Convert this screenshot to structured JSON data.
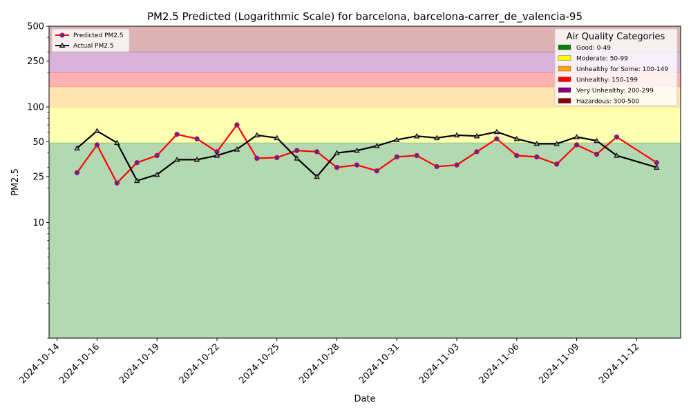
{
  "chart_data": {
    "type": "line",
    "title": "PM2.5 Predicted (Logarithmic Scale) for barcelona, barcelona-carrer_de_valencia-95",
    "xlabel": "Date",
    "ylabel": "PM2.5",
    "yscale": "log",
    "ylim": [
      1,
      500
    ],
    "xlim": [
      "2024-10-13.6",
      "2024-11-14.2"
    ],
    "yticks": [
      10,
      25,
      50,
      100,
      250,
      500
    ],
    "xticks": [
      "2024-10-14",
      "2024-10-16",
      "2024-10-19",
      "2024-10-22",
      "2024-10-25",
      "2024-10-28",
      "2024-10-31",
      "2024-11-03",
      "2024-11-06",
      "2024-11-09",
      "2024-11-12"
    ],
    "bands": [
      {
        "label": "Good: 0-49",
        "from": 0,
        "to": 49,
        "color": "#008000"
      },
      {
        "label": "Moderate: 50-99",
        "from": 49,
        "to": 99,
        "color": "#ffff00"
      },
      {
        "label": "Unhealthy for Some: 100-149",
        "from": 99,
        "to": 149,
        "color": "#ffa500"
      },
      {
        "label": "Unhealthy: 150-199",
        "from": 149,
        "to": 199,
        "color": "#ff0000"
      },
      {
        "label": "Very Unhealthy: 200-299",
        "from": 199,
        "to": 299,
        "color": "#800080"
      },
      {
        "label": "Hazardous: 300-500",
        "from": 299,
        "to": 500,
        "color": "#8b0000"
      }
    ],
    "legend_title": "Air Quality Categories",
    "legend_position": "top-right",
    "series": [
      {
        "name": "Predicted PM2.5",
        "color": "#ff0000",
        "marker_color": "#3333cc",
        "marker": "circle",
        "points": [
          [
            "2024-10-15",
            27
          ],
          [
            "2024-10-16",
            47
          ],
          [
            "2024-10-17",
            22
          ],
          [
            "2024-10-18",
            33
          ],
          [
            "2024-10-19",
            38
          ],
          [
            "2024-10-20",
            58
          ],
          [
            "2024-10-21",
            53
          ],
          [
            "2024-10-22",
            41
          ],
          [
            "2024-10-23",
            70
          ],
          [
            "2024-10-24",
            36
          ],
          [
            "2024-10-25",
            36.5
          ],
          [
            "2024-10-26",
            42
          ],
          [
            "2024-10-27",
            41
          ],
          [
            "2024-10-28",
            30
          ],
          [
            "2024-10-29",
            31.5
          ],
          [
            "2024-10-30",
            28
          ],
          [
            "2024-10-31",
            37
          ],
          [
            "2024-11-01",
            38
          ],
          [
            "2024-11-02",
            30.5
          ],
          [
            "2024-11-03",
            31.5
          ],
          [
            "2024-11-04",
            41
          ],
          [
            "2024-11-05",
            53
          ],
          [
            "2024-11-06",
            38
          ],
          [
            "2024-11-07",
            37
          ],
          [
            "2024-11-08",
            32
          ],
          [
            "2024-11-09",
            47
          ],
          [
            "2024-11-10",
            39
          ],
          [
            "2024-11-11",
            55
          ],
          [
            "2024-11-13",
            33
          ]
        ]
      },
      {
        "name": "Actual PM2.5",
        "color": "#000000",
        "marker_color": "#000000",
        "marker": "triangle",
        "points": [
          [
            "2024-10-15",
            44
          ],
          [
            "2024-10-16",
            62
          ],
          [
            "2024-10-17",
            49
          ],
          [
            "2024-10-18",
            23
          ],
          [
            "2024-10-19",
            26
          ],
          [
            "2024-10-20",
            35
          ],
          [
            "2024-10-21",
            35
          ],
          [
            "2024-10-22",
            38
          ],
          [
            "2024-10-23",
            43
          ],
          [
            "2024-10-24",
            57
          ],
          [
            "2024-10-25",
            54
          ],
          [
            "2024-10-26",
            36
          ],
          [
            "2024-10-27",
            25
          ],
          [
            "2024-10-28",
            40
          ],
          [
            "2024-10-29",
            42
          ],
          [
            "2024-10-30",
            46
          ],
          [
            "2024-10-31",
            52
          ],
          [
            "2024-11-01",
            56
          ],
          [
            "2024-11-02",
            54
          ],
          [
            "2024-11-03",
            57
          ],
          [
            "2024-11-04",
            56
          ],
          [
            "2024-11-05",
            61
          ],
          [
            "2024-11-06",
            53
          ],
          [
            "2024-11-07",
            48
          ],
          [
            "2024-11-08",
            48
          ],
          [
            "2024-11-09",
            55
          ],
          [
            "2024-11-10",
            51
          ],
          [
            "2024-11-11",
            38
          ],
          [
            "2024-11-13",
            30
          ]
        ]
      }
    ]
  }
}
